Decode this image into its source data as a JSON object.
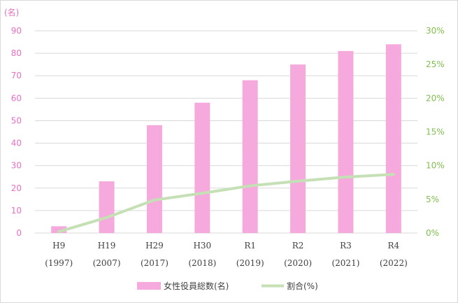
{
  "chart_data": {
    "type": "bar",
    "categories": [
      [
        "H9",
        "(1997)"
      ],
      [
        "H19",
        "(2007)"
      ],
      [
        "H29",
        "(2017)"
      ],
      [
        "H30",
        "(2018)"
      ],
      [
        "R1",
        "(2019)"
      ],
      [
        "R2",
        "(2020)"
      ],
      [
        "R3",
        "(2021)"
      ],
      [
        "R4",
        "(2022)"
      ]
    ],
    "series": [
      {
        "name": "女性役員総数(名)",
        "type": "bar",
        "axis": "left",
        "color": "#f5a9dc",
        "values": [
          3,
          23,
          48,
          58,
          68,
          75,
          81,
          84
        ]
      },
      {
        "name": "割合(%)",
        "type": "line",
        "axis": "right",
        "color": "#c5e0b4",
        "values": [
          0.2,
          2.3,
          4.9,
          5.9,
          7.0,
          7.7,
          8.3,
          8.7
        ]
      }
    ],
    "ylabel": "(名)",
    "ylim": [
      0,
      90
    ],
    "yticks": [
      0,
      10,
      20,
      30,
      40,
      50,
      60,
      70,
      80,
      90
    ],
    "y2lim": [
      0,
      30
    ],
    "y2ticks": [
      "0%",
      "5%",
      "10%",
      "15%",
      "20%",
      "25%",
      "30%"
    ],
    "grid": true,
    "legend_position": "bottom",
    "colors": {
      "left_axis": "#e86fc3",
      "right_axis": "#7fbf4d",
      "grid": "#d9d9d9"
    }
  }
}
